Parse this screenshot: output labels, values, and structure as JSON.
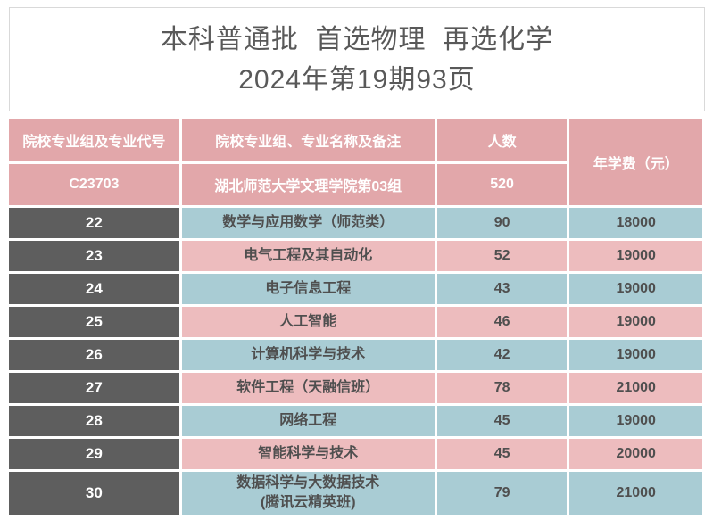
{
  "title": {
    "line1": "本科普通批  首选物理  再选化学",
    "line2": "2024年第19期93页"
  },
  "table": {
    "headers": {
      "col_code": "院校专业组及专业代号",
      "col_name": "院校专业组、专业名称及备注",
      "col_count": "人数",
      "col_fee": "年学费（元）"
    },
    "group_row": {
      "code": "C23703",
      "name": "湖北师范大学文理学院第03组",
      "count": "520"
    },
    "rows": [
      {
        "code": "22",
        "name": "数学与应用数学（师范类）",
        "count": "90",
        "fee": "18000"
      },
      {
        "code": "23",
        "name": "电气工程及其自动化",
        "count": "52",
        "fee": "19000"
      },
      {
        "code": "24",
        "name": "电子信息工程",
        "count": "43",
        "fee": "19000"
      },
      {
        "code": "25",
        "name": "人工智能",
        "count": "46",
        "fee": "19000"
      },
      {
        "code": "26",
        "name": "计算机科学与技术",
        "count": "42",
        "fee": "19000"
      },
      {
        "code": "27",
        "name": "软件工程（天融信班）",
        "count": "78",
        "fee": "21000"
      },
      {
        "code": "28",
        "name": "网络工程",
        "count": "45",
        "fee": "19000"
      },
      {
        "code": "29",
        "name": "智能科学与技术",
        "count": "45",
        "fee": "20000"
      },
      {
        "code": "30",
        "name": "数据科学与大数据技术\n(腾讯云精英班)",
        "count": "79",
        "fee": "21000"
      }
    ]
  },
  "colors": {
    "header_pink": "#e2a7aa",
    "row_pink": "#edbcbe",
    "row_blue": "#a9ccd4",
    "code_dark": "#5e5e5e",
    "text_dark": "#4f4f4f",
    "title_gray": "#595959"
  }
}
